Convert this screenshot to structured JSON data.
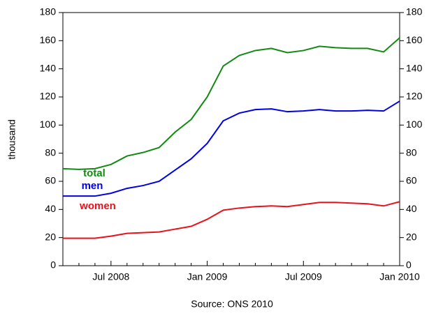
{
  "chart_data": {
    "type": "line",
    "y_label": "thousand",
    "source": "Source: ONS 2010",
    "categories": [
      null,
      null,
      null,
      "Jul 2008",
      null,
      null,
      null,
      null,
      null,
      "Jan 2009",
      null,
      null,
      null,
      null,
      null,
      "Jul 2009",
      null,
      null,
      null,
      null,
      null,
      "Jan 2010"
    ],
    "series": [
      {
        "name": "total",
        "color": "#128a12",
        "values": [
          69,
          68.5,
          69,
          72,
          78,
          80.5,
          84,
          95,
          104,
          120,
          142,
          149.5,
          153,
          154.5,
          151.5,
          153,
          156,
          155,
          154.5,
          154.5,
          152,
          162
        ]
      },
      {
        "name": "men",
        "color": "#0000e6",
        "values": [
          49.5,
          49.5,
          49.5,
          51.5,
          55,
          57,
          60,
          68,
          76,
          87,
          103,
          108.5,
          111,
          111.5,
          109.5,
          110,
          111,
          110,
          110,
          110.5,
          110,
          117
        ]
      },
      {
        "name": "women",
        "color": "#e8121b",
        "values": [
          19.5,
          19.5,
          19.5,
          21,
          23,
          23.5,
          24,
          26,
          28,
          33,
          39.5,
          41,
          42,
          42.5,
          42,
          43.5,
          45,
          45,
          44.5,
          44,
          42.5,
          45.5
        ]
      }
    ],
    "ylim": [
      0,
      180
    ],
    "yticks": [
      0,
      20,
      40,
      60,
      80,
      100,
      120,
      140,
      160,
      180
    ],
    "y2lim": [
      0,
      180
    ],
    "y2ticks": [
      0,
      20,
      40,
      60,
      80,
      100,
      120,
      140,
      160,
      180
    ],
    "grid": false
  }
}
